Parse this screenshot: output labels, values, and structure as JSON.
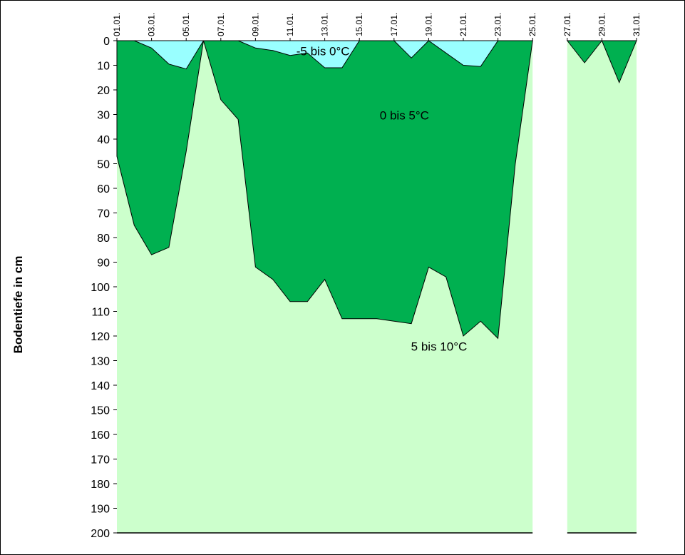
{
  "chart_data": {
    "type": "area",
    "title": "",
    "ylabel": "Bodentiefe in cm",
    "xlabel": "",
    "xlim": [
      1,
      31
    ],
    "ylim": [
      0,
      200
    ],
    "y_inverted": true,
    "y_ticks": [
      0,
      10,
      20,
      30,
      40,
      50,
      60,
      70,
      80,
      90,
      100,
      110,
      120,
      130,
      140,
      150,
      160,
      170,
      180,
      190,
      200
    ],
    "x_tick_labels": [
      "01.01.",
      "03.01.",
      "05.01.",
      "07.01.",
      "09.01.",
      "11.01.",
      "13.01.",
      "15.01.",
      "17.01.",
      "19.01.",
      "21.01.",
      "23.01.",
      "25.01.",
      "27.01.",
      "29.01.",
      "31.01."
    ],
    "x_tick_days": [
      1,
      3,
      5,
      7,
      9,
      11,
      13,
      15,
      17,
      19,
      21,
      23,
      25,
      27,
      29,
      31
    ],
    "grid": false,
    "bands": [
      {
        "name": "5 bis 10°C",
        "color": "#ccffcc",
        "label_at": {
          "day": 19.6,
          "depth": 126
        },
        "segments": [
          [
            [
              1,
              0
            ],
            [
              1,
              200
            ],
            [
              25,
              200
            ],
            [
              25,
              0
            ]
          ],
          [
            [
              27,
              0
            ],
            [
              27,
              200
            ],
            [
              31,
              200
            ],
            [
              31,
              0
            ]
          ]
        ]
      },
      {
        "name": "0 bis 5°C",
        "color": "#00b050",
        "label_at": {
          "day": 17.6,
          "depth": 32
        },
        "segments": [
          [
            [
              1,
              0
            ],
            [
              1,
              47
            ],
            [
              2,
              75
            ],
            [
              3,
              87
            ],
            [
              4,
              84
            ],
            [
              5,
              45
            ],
            [
              6,
              0
            ]
          ],
          [
            [
              6,
              0
            ],
            [
              7,
              24
            ],
            [
              8,
              32
            ],
            [
              9,
              92
            ],
            [
              10,
              97
            ],
            [
              11,
              106
            ],
            [
              12,
              106
            ],
            [
              13,
              97
            ],
            [
              14,
              113
            ],
            [
              15,
              113
            ],
            [
              16,
              113
            ],
            [
              17,
              114
            ],
            [
              18,
              115
            ],
            [
              19,
              92
            ],
            [
              20,
              96
            ],
            [
              21,
              120
            ],
            [
              22,
              114
            ],
            [
              23,
              121
            ],
            [
              24,
              50
            ],
            [
              25,
              0
            ]
          ],
          [
            [
              27,
              0
            ],
            [
              28,
              9
            ],
            [
              29,
              0
            ]
          ],
          [
            [
              29,
              0
            ],
            [
              30,
              17
            ],
            [
              31,
              0
            ]
          ]
        ]
      },
      {
        "name": "-5 bis 0°C",
        "color": "#99ffff",
        "label_at": {
          "day": 12.9,
          "depth": 6
        },
        "segments": [
          [
            [
              2,
              0
            ],
            [
              3,
              3
            ],
            [
              4,
              9.5
            ],
            [
              5,
              11.5
            ],
            [
              6,
              0
            ]
          ],
          [
            [
              8,
              0
            ],
            [
              9,
              3
            ],
            [
              10,
              4
            ],
            [
              11,
              6
            ],
            [
              12,
              5
            ],
            [
              13,
              11
            ],
            [
              14,
              11
            ],
            [
              15,
              0
            ]
          ],
          [
            [
              17,
              0
            ],
            [
              18,
              7
            ],
            [
              19,
              0
            ]
          ],
          [
            [
              19,
              0
            ],
            [
              20,
              5
            ],
            [
              21,
              10
            ],
            [
              22,
              10.5
            ],
            [
              23,
              0
            ]
          ]
        ]
      }
    ]
  }
}
